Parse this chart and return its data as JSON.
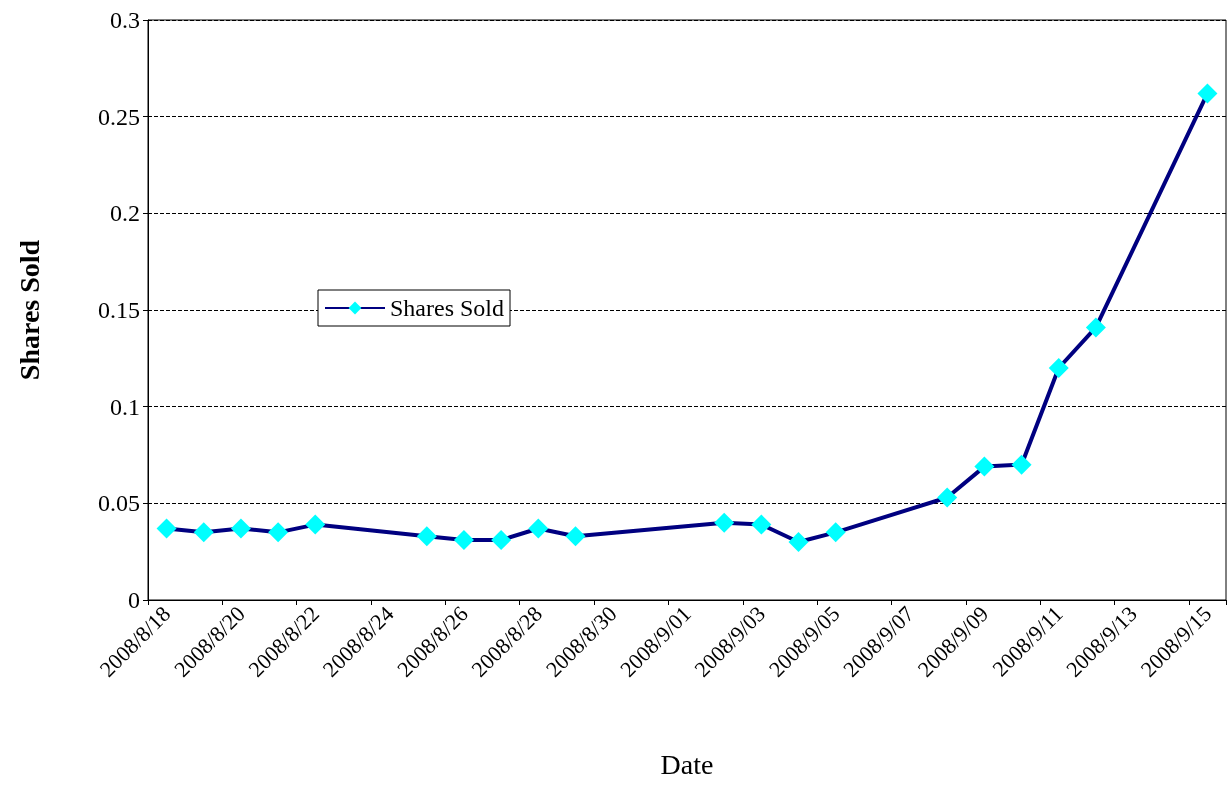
{
  "chart_data": {
    "type": "line",
    "xlabel": "Date",
    "ylabel": "Shares Sold",
    "categories": [
      "2008/8/18",
      null,
      "2008/8/20",
      null,
      "2008/8/22",
      null,
      "2008/8/24",
      null,
      "2008/8/26",
      null,
      "2008/8/28",
      null,
      "2008/8/30",
      null,
      "2008/9/01",
      null,
      "2008/9/03",
      null,
      "2008/9/05",
      null,
      "2008/9/07",
      null,
      "2008/9/09",
      null,
      "2008/9/11",
      null,
      "2008/9/13",
      null,
      "2008/9/15"
    ],
    "series": [
      {
        "name": "Shares Sold",
        "color": "#000080",
        "values": [
          0.037,
          0.035,
          0.037,
          0.035,
          0.039,
          null,
          null,
          0.033,
          0.031,
          0.031,
          0.037,
          0.033,
          null,
          null,
          null,
          0.04,
          0.039,
          0.03,
          0.035,
          null,
          null,
          0.053,
          0.069,
          0.07,
          0.12,
          0.141,
          null,
          null,
          0.262
        ]
      }
    ],
    "ylim": [
      0,
      0.3
    ],
    "yticks": [
      0,
      0.05,
      0.1,
      0.15,
      0.2,
      0.25,
      0.3
    ],
    "grid": "y",
    "legend": "left",
    "marker": "diamond",
    "line_style": "solid"
  }
}
